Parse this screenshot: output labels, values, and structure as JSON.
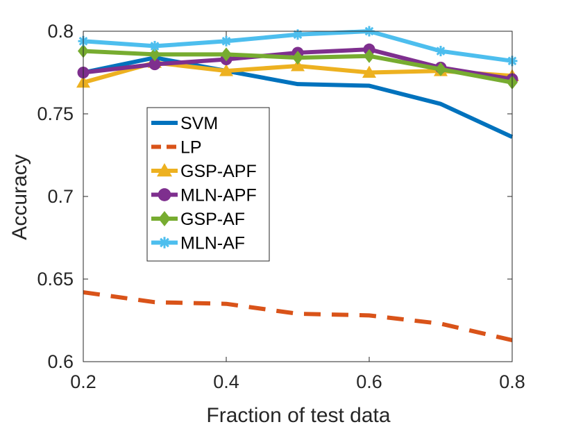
{
  "chart_data": {
    "type": "line",
    "title": "",
    "xlabel": "Fraction of test data",
    "ylabel": "Accuracy",
    "xlim": [
      0.2,
      0.8
    ],
    "ylim": [
      0.6,
      0.8
    ],
    "xticks": [
      0.2,
      0.4,
      0.6,
      0.8
    ],
    "xtick_labels": [
      "0.2",
      "0.4",
      "0.6",
      "0.8"
    ],
    "yticks": [
      0.6,
      0.65,
      0.7,
      0.75,
      0.8
    ],
    "ytick_labels": [
      "0.6",
      "0.65",
      "0.7",
      "0.75",
      "0.8"
    ],
    "x": [
      0.2,
      0.3,
      0.4,
      0.5,
      0.6,
      0.7,
      0.8
    ],
    "legend_position": "middle-left",
    "series": [
      {
        "name": "SVM",
        "color": "#0072BD",
        "style": "solid",
        "marker": "none",
        "values": [
          0.775,
          0.784,
          0.776,
          0.768,
          0.767,
          0.756,
          0.736
        ]
      },
      {
        "name": "LP",
        "color": "#D95319",
        "style": "dashed",
        "marker": "none",
        "values": [
          0.642,
          0.636,
          0.635,
          0.629,
          0.628,
          0.623,
          0.613
        ]
      },
      {
        "name": "GSP-APF",
        "color": "#EDB120",
        "style": "solid",
        "marker": "triangle",
        "values": [
          0.769,
          0.781,
          0.776,
          0.779,
          0.775,
          0.776,
          0.773
        ]
      },
      {
        "name": "MLN-APF",
        "color": "#7E2F8E",
        "style": "solid",
        "marker": "circle",
        "values": [
          0.775,
          0.78,
          0.783,
          0.787,
          0.789,
          0.778,
          0.771
        ]
      },
      {
        "name": "GSP-AF",
        "color": "#77AC30",
        "style": "solid",
        "marker": "diamond",
        "values": [
          0.788,
          0.786,
          0.786,
          0.784,
          0.785,
          0.777,
          0.769
        ]
      },
      {
        "name": "MLN-AF",
        "color": "#4DBEEE",
        "style": "solid",
        "marker": "star",
        "values": [
          0.794,
          0.791,
          0.794,
          0.798,
          0.8,
          0.788,
          0.782
        ]
      }
    ]
  }
}
